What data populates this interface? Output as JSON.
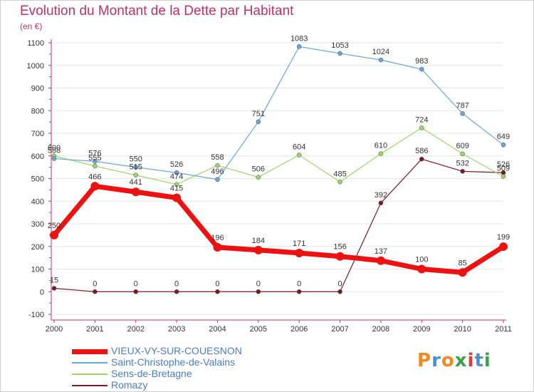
{
  "title": "Evolution du Montant de la Dette par Habitant",
  "subtitle": "(en €)",
  "logo": {
    "text": "Proxiti",
    "colors": [
      "#f08a1c",
      "#4a8fd1",
      "#f08a1c",
      "#3aa14a",
      "#e23a3a",
      "#4a8fd1",
      "#3aa14a"
    ]
  },
  "chart_data": {
    "type": "line",
    "x": [
      "2000",
      "2001",
      "2002",
      "2003",
      "2004",
      "2005",
      "2006",
      "2007",
      "2008",
      "2009",
      "2010",
      "2011"
    ],
    "ylim": [
      -100,
      1100
    ],
    "yticks": [
      -100,
      0,
      100,
      200,
      300,
      400,
      500,
      600,
      700,
      800,
      900,
      1000,
      1100
    ],
    "grid": "horizontal",
    "legend_position": "bottom-left",
    "series": [
      {
        "name": "Romazy",
        "color": "#7a1a22",
        "width": 1.2,
        "marker": 3,
        "values": [
          15,
          0,
          0,
          0,
          0,
          0,
          0,
          0,
          392,
          586,
          532,
          526
        ],
        "labels": [
          "15",
          "0",
          "0",
          "0",
          "0",
          "0",
          "0",
          "0",
          "392",
          "586",
          "532",
          "526"
        ]
      },
      {
        "name": "Sens-de-Bretagne",
        "color": "#9cd66b",
        "width": 1.2,
        "marker": 3,
        "values": [
          600,
          555,
          515,
          474,
          558,
          506,
          604,
          485,
          610,
          724,
          609,
          509
        ],
        "labels": [
          "600",
          "555",
          "515",
          "474",
          "558",
          "506",
          "604",
          "485",
          "610",
          "724",
          "609",
          "509"
        ]
      },
      {
        "name": "Saint-Christophe-de-Valains",
        "color": "#6aa7d8",
        "width": 1.2,
        "marker": 3,
        "values": [
          588,
          576,
          550,
          526,
          496,
          751,
          1083,
          1053,
          1024,
          983,
          787,
          649
        ],
        "labels": [
          "588",
          "576",
          "550",
          "526",
          "496",
          "751",
          "1083",
          "1053",
          "1024",
          "983",
          "787",
          "649"
        ]
      },
      {
        "name": "VIEUX-VY-SUR-COUESNON",
        "color": "#ee1111",
        "width": 7,
        "marker": 6,
        "values": [
          250,
          466,
          441,
          415,
          196,
          184,
          171,
          156,
          137,
          100,
          85,
          199
        ],
        "labels": [
          "250",
          "466",
          "441",
          "415",
          "196",
          "184",
          "171",
          "156",
          "137",
          "100",
          "85",
          "199"
        ]
      }
    ]
  },
  "legend": [
    {
      "name": "VIEUX-VY-SUR-COUESNON",
      "color": "#ee1111",
      "label_color": "#4a7cc8",
      "thick": 7
    },
    {
      "name": "Saint-Christophe-de-Valains",
      "color": "#6aa7d8",
      "label_color": "#4a7cc8",
      "thick": 2
    },
    {
      "name": "Sens-de-Bretagne",
      "color": "#9cd66b",
      "label_color": "#4a7cc8",
      "thick": 2
    },
    {
      "name": "Romazy",
      "color": "#7a1a22",
      "label_color": "#4a7cc8",
      "thick": 2
    }
  ]
}
